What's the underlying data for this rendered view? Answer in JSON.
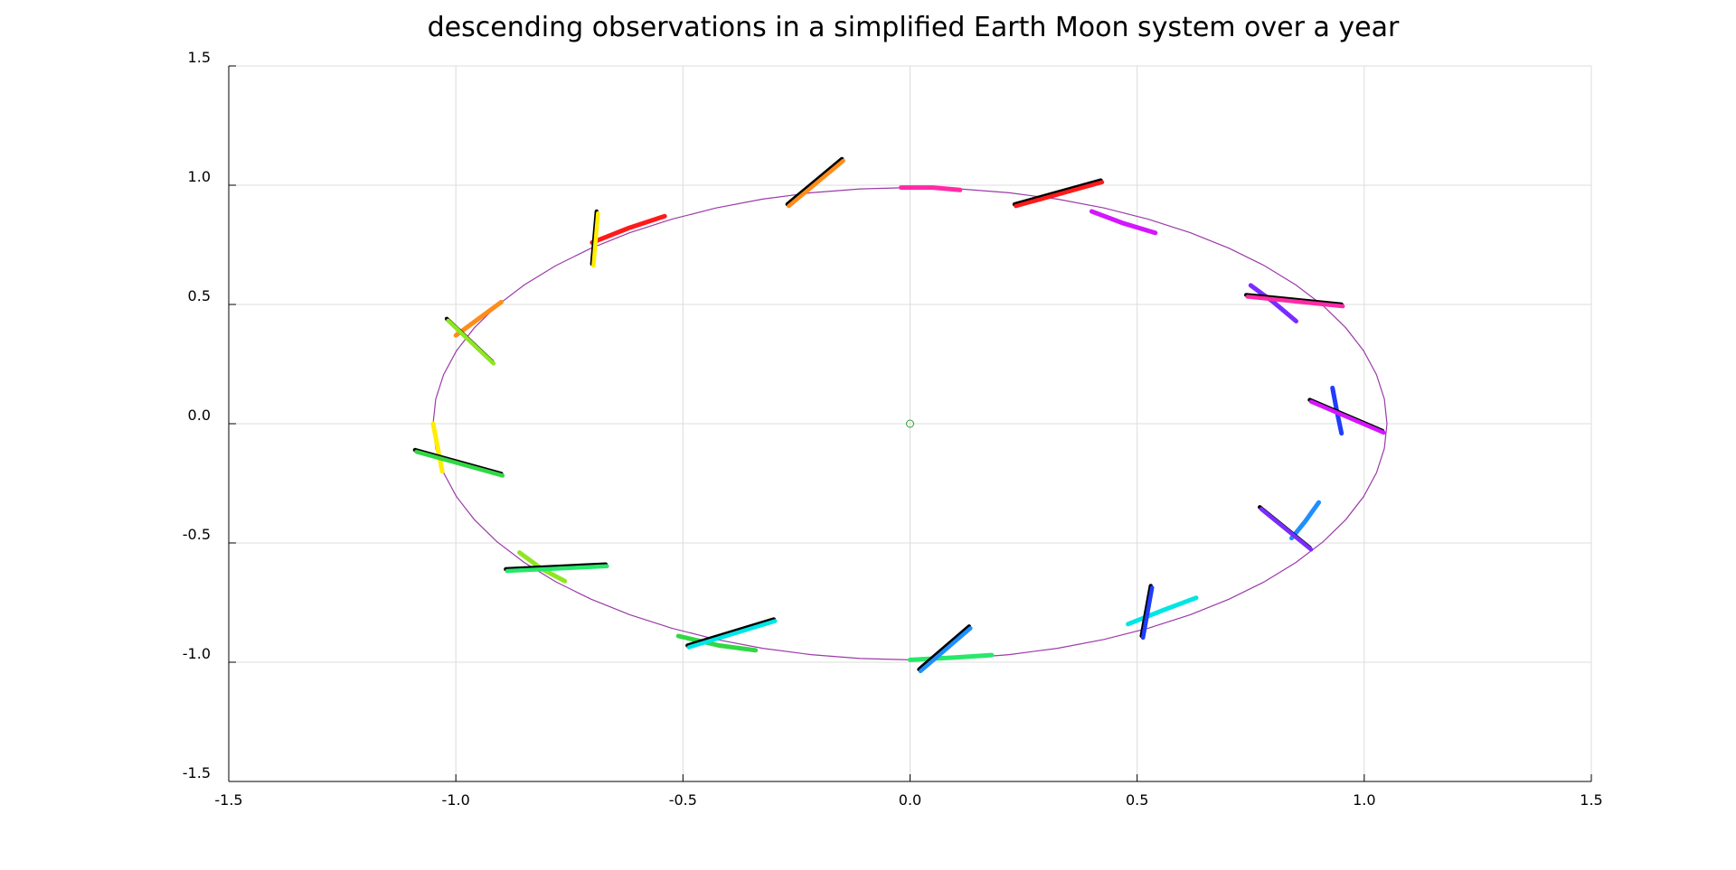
{
  "chart_data": {
    "type": "line",
    "title": "descending observations in a simplified Earth Moon system over a year",
    "xlabel": "",
    "ylabel": "",
    "xlim": [
      -1.5,
      1.5
    ],
    "ylim": [
      -1.5,
      1.5
    ],
    "grid": true,
    "legend": "none",
    "x_ticks": [
      -1.5,
      -1.0,
      -0.5,
      0.0,
      0.5,
      1.0,
      1.5
    ],
    "y_ticks": [
      -1.5,
      -1.0,
      -0.5,
      0.0,
      0.5,
      1.0,
      1.5
    ],
    "x_tick_labels": [
      "-1.5",
      "-1.0",
      "-0.5",
      "0.0",
      "0.5",
      "1.0",
      "1.5"
    ],
    "y_tick_labels": [
      "-1.5",
      "-1.0",
      "-0.5",
      "0.0",
      "0.5",
      "1.0",
      "1.5"
    ],
    "orbit": {
      "rx": 1.05,
      "ry": 0.99,
      "color": "#9b3aa8"
    },
    "center_marker": {
      "x": 0.0,
      "y": 0.0,
      "color": "#2ca02c"
    },
    "arcs": [
      {
        "x": [
          -0.02,
          0.05,
          0.11
        ],
        "y": [
          0.99,
          0.99,
          0.98
        ],
        "color": "#ff2aa6"
      },
      {
        "x": [
          0.4,
          0.47,
          0.54
        ],
        "y": [
          0.89,
          0.84,
          0.8
        ],
        "color": "#d416ff"
      },
      {
        "x": [
          0.75,
          0.8,
          0.85
        ],
        "y": [
          0.58,
          0.51,
          0.43
        ],
        "color": "#7a2cff"
      },
      {
        "x": [
          0.93,
          0.94,
          0.95
        ],
        "y": [
          0.15,
          0.05,
          -0.04
        ],
        "color": "#1f3cff"
      },
      {
        "x": [
          0.9,
          0.87,
          0.84
        ],
        "y": [
          -0.33,
          -0.41,
          -0.48
        ],
        "color": "#1f8fff"
      },
      {
        "x": [
          0.63,
          0.56,
          0.48
        ],
        "y": [
          -0.73,
          -0.78,
          -0.84
        ],
        "color": "#00e5e5"
      },
      {
        "x": [
          0.18,
          0.1,
          0.0
        ],
        "y": [
          -0.97,
          -0.98,
          -0.99
        ],
        "color": "#27e86a"
      },
      {
        "x": [
          -0.34,
          -0.42,
          -0.51
        ],
        "y": [
          -0.95,
          -0.93,
          -0.89
        ],
        "color": "#31d843"
      },
      {
        "x": [
          -0.76,
          -0.81,
          -0.86
        ],
        "y": [
          -0.66,
          -0.61,
          -0.54
        ],
        "color": "#8ee622"
      },
      {
        "x": [
          -1.03,
          -1.04,
          -1.05
        ],
        "y": [
          -0.2,
          -0.1,
          0.0
        ],
        "color": "#ffee00"
      },
      {
        "x": [
          -0.9,
          -0.95,
          -1.0
        ],
        "y": [
          0.51,
          0.44,
          0.37
        ],
        "color": "#ff8c1a"
      },
      {
        "x": [
          -0.54,
          -0.62,
          -0.7
        ],
        "y": [
          0.87,
          0.82,
          0.76
        ],
        "color": "#ff1a1a"
      }
    ],
    "streaks": [
      {
        "x1": 0.23,
        "y1": 0.92,
        "x2": 0.42,
        "y2": 1.02,
        "color": "#ff1a1a"
      },
      {
        "x1": 0.74,
        "y1": 0.54,
        "x2": 0.95,
        "y2": 0.5,
        "color": "#ff2aa6"
      },
      {
        "x1": 0.88,
        "y1": 0.1,
        "x2": 1.04,
        "y2": -0.03,
        "color": "#d416ff"
      },
      {
        "x1": 0.77,
        "y1": -0.35,
        "x2": 0.88,
        "y2": -0.52,
        "color": "#7a2cff"
      },
      {
        "x1": 0.51,
        "y1": -0.89,
        "x2": 0.53,
        "y2": -0.68,
        "color": "#1f3cff"
      },
      {
        "x1": 0.02,
        "y1": -1.03,
        "x2": 0.13,
        "y2": -0.85,
        "color": "#1f8fff"
      },
      {
        "x1": -0.49,
        "y1": -0.93,
        "x2": -0.3,
        "y2": -0.82,
        "color": "#00e5e5"
      },
      {
        "x1": -0.89,
        "y1": -0.61,
        "x2": -0.67,
        "y2": -0.59,
        "color": "#27e86a"
      },
      {
        "x1": -1.09,
        "y1": -0.11,
        "x2": -0.9,
        "y2": -0.21,
        "color": "#31d843"
      },
      {
        "x1": -1.02,
        "y1": 0.44,
        "x2": -0.92,
        "y2": 0.26,
        "color": "#8ee622"
      },
      {
        "x1": -0.7,
        "y1": 0.67,
        "x2": -0.69,
        "y2": 0.89,
        "color": "#ffee00"
      },
      {
        "x1": -0.27,
        "y1": 0.92,
        "x2": -0.15,
        "y2": 1.11,
        "color": "#ff8c1a"
      }
    ]
  }
}
